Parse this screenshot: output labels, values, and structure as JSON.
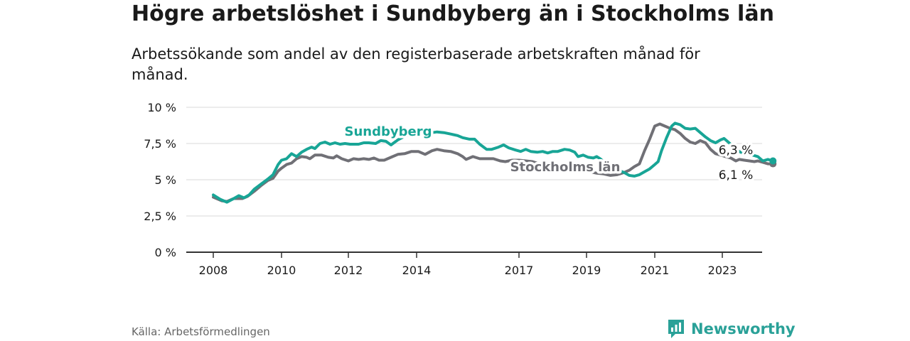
{
  "title": "Högre arbetslöshet i Sundbyberg än i Stockholms län",
  "subtitle": "Arbetssökande som andel av den registerbaserade arbetskraften månad för månad.",
  "source": "Källa: Arbetsförmedlingen",
  "brand": {
    "name": "Newsworthy",
    "icon": "newsworthy-logo-icon"
  },
  "colors": {
    "sundbyberg": "#18a596",
    "stockholm": "#707076",
    "grid": "#d8d8d8",
    "axis": "#333333"
  },
  "chart_data": {
    "type": "line",
    "title": "Högre arbetslöshet i Sundbyberg än i Stockholms län",
    "xlabel": "",
    "ylabel": "",
    "ylim": [
      0,
      10
    ],
    "xlim": [
      2008.0,
      2023.7
    ],
    "y_ticks": [
      {
        "value": 0,
        "label": "0 %"
      },
      {
        "value": 2.5,
        "label": "2,5 %"
      },
      {
        "value": 5,
        "label": "5 %"
      },
      {
        "value": 7.5,
        "label": "7,5 %"
      },
      {
        "value": 10,
        "label": "10 %"
      }
    ],
    "x_ticks": [
      {
        "value": 2008,
        "label": "2008"
      },
      {
        "value": 2010,
        "label": "2010"
      },
      {
        "value": 2012,
        "label": "2012"
      },
      {
        "value": 2014,
        "label": "2014"
      },
      {
        "value": 2017,
        "label": "2017"
      },
      {
        "value": 2019,
        "label": "2019"
      },
      {
        "value": 2021,
        "label": "2021"
      },
      {
        "value": 2023,
        "label": "2023"
      }
    ],
    "series": [
      {
        "name": "Stockholms län",
        "label": "Stockholms län",
        "end_label": "6,1 %",
        "points": [
          [
            2008.0,
            3.8
          ],
          [
            2008.25,
            3.55
          ],
          [
            2008.4,
            3.5
          ],
          [
            2008.6,
            3.7
          ],
          [
            2008.85,
            3.7
          ],
          [
            2009.0,
            3.85
          ],
          [
            2009.2,
            4.2
          ],
          [
            2009.4,
            4.6
          ],
          [
            2009.6,
            4.95
          ],
          [
            2009.75,
            5.1
          ],
          [
            2009.9,
            5.6
          ],
          [
            2010.0,
            5.8
          ],
          [
            2010.15,
            6.05
          ],
          [
            2010.3,
            6.15
          ],
          [
            2010.45,
            6.45
          ],
          [
            2010.6,
            6.6
          ],
          [
            2010.75,
            6.55
          ],
          [
            2010.85,
            6.45
          ],
          [
            2011.0,
            6.7
          ],
          [
            2011.2,
            6.7
          ],
          [
            2011.4,
            6.55
          ],
          [
            2011.55,
            6.5
          ],
          [
            2011.65,
            6.65
          ],
          [
            2011.8,
            6.45
          ],
          [
            2012.0,
            6.3
          ],
          [
            2012.15,
            6.45
          ],
          [
            2012.3,
            6.4
          ],
          [
            2012.45,
            6.45
          ],
          [
            2012.6,
            6.4
          ],
          [
            2012.75,
            6.5
          ],
          [
            2012.9,
            6.35
          ],
          [
            2013.05,
            6.35
          ],
          [
            2013.25,
            6.55
          ],
          [
            2013.45,
            6.75
          ],
          [
            2013.65,
            6.8
          ],
          [
            2013.85,
            6.95
          ],
          [
            2014.05,
            6.95
          ],
          [
            2014.25,
            6.75
          ],
          [
            2014.45,
            7.0
          ],
          [
            2014.6,
            7.1
          ],
          [
            2014.8,
            7.0
          ],
          [
            2015.0,
            6.95
          ],
          [
            2015.2,
            6.8
          ],
          [
            2015.35,
            6.6
          ],
          [
            2015.45,
            6.4
          ],
          [
            2015.65,
            6.6
          ],
          [
            2015.85,
            6.45
          ],
          [
            2016.05,
            6.45
          ],
          [
            2016.25,
            6.45
          ],
          [
            2016.45,
            6.3
          ],
          [
            2016.6,
            6.25
          ],
          [
            2016.8,
            6.35
          ],
          [
            2017.0,
            6.35
          ],
          [
            2017.2,
            6.3
          ],
          [
            2017.4,
            6.25
          ],
          [
            2017.6,
            6.1
          ],
          [
            2017.8,
            6.05
          ],
          [
            2018.0,
            6.0
          ],
          [
            2018.3,
            6.0
          ],
          [
            2018.6,
            5.85
          ],
          [
            2018.9,
            5.7
          ],
          [
            2019.1,
            5.55
          ],
          [
            2019.3,
            5.45
          ],
          [
            2019.5,
            5.4
          ],
          [
            2019.7,
            5.3
          ],
          [
            2019.9,
            5.35
          ],
          [
            2020.1,
            5.5
          ],
          [
            2020.25,
            5.65
          ],
          [
            2020.4,
            5.9
          ],
          [
            2020.55,
            6.1
          ],
          [
            2020.7,
            7.0
          ],
          [
            2020.85,
            7.8
          ],
          [
            2021.0,
            8.7
          ],
          [
            2021.15,
            8.85
          ],
          [
            2021.3,
            8.7
          ],
          [
            2021.45,
            8.55
          ],
          [
            2021.6,
            8.45
          ],
          [
            2021.75,
            8.2
          ],
          [
            2021.9,
            7.85
          ],
          [
            2022.05,
            7.6
          ],
          [
            2022.2,
            7.5
          ],
          [
            2022.35,
            7.7
          ],
          [
            2022.5,
            7.55
          ],
          [
            2022.65,
            7.1
          ],
          [
            2022.8,
            6.8
          ],
          [
            2022.95,
            6.7
          ],
          [
            2023.1,
            6.6
          ],
          [
            2023.25,
            6.5
          ],
          [
            2023.4,
            6.3
          ],
          [
            2023.5,
            6.4
          ],
          [
            2023.65,
            6.35
          ],
          [
            2023.8,
            6.3
          ],
          [
            2023.95,
            6.25
          ],
          [
            2024.05,
            6.3
          ],
          [
            2024.2,
            6.2
          ],
          [
            2024.35,
            6.1
          ],
          [
            2024.5,
            6.1
          ]
        ]
      },
      {
        "name": "Sundbyberg",
        "label": "Sundbyberg",
        "end_label": "6,3 %",
        "points": [
          [
            2008.0,
            3.95
          ],
          [
            2008.2,
            3.65
          ],
          [
            2008.4,
            3.45
          ],
          [
            2008.6,
            3.7
          ],
          [
            2008.75,
            3.9
          ],
          [
            2008.9,
            3.75
          ],
          [
            2009.05,
            3.95
          ],
          [
            2009.2,
            4.35
          ],
          [
            2009.4,
            4.7
          ],
          [
            2009.6,
            5.05
          ],
          [
            2009.75,
            5.35
          ],
          [
            2009.9,
            6.05
          ],
          [
            2010.0,
            6.35
          ],
          [
            2010.15,
            6.45
          ],
          [
            2010.3,
            6.8
          ],
          [
            2010.45,
            6.6
          ],
          [
            2010.6,
            6.9
          ],
          [
            2010.75,
            7.1
          ],
          [
            2010.9,
            7.25
          ],
          [
            2011.0,
            7.15
          ],
          [
            2011.15,
            7.5
          ],
          [
            2011.3,
            7.6
          ],
          [
            2011.45,
            7.45
          ],
          [
            2011.6,
            7.55
          ],
          [
            2011.75,
            7.45
          ],
          [
            2011.9,
            7.5
          ],
          [
            2012.05,
            7.45
          ],
          [
            2012.3,
            7.45
          ],
          [
            2012.45,
            7.55
          ],
          [
            2012.6,
            7.55
          ],
          [
            2012.8,
            7.5
          ],
          [
            2012.95,
            7.7
          ],
          [
            2013.1,
            7.65
          ],
          [
            2013.25,
            7.4
          ],
          [
            2013.45,
            7.75
          ],
          [
            2013.65,
            8.0
          ],
          [
            2013.85,
            8.1
          ],
          [
            2014.05,
            8.15
          ],
          [
            2014.25,
            8.05
          ],
          [
            2014.45,
            8.25
          ],
          [
            2014.6,
            8.3
          ],
          [
            2014.8,
            8.25
          ],
          [
            2015.0,
            8.15
          ],
          [
            2015.2,
            8.05
          ],
          [
            2015.35,
            7.9
          ],
          [
            2015.55,
            7.8
          ],
          [
            2015.7,
            7.8
          ],
          [
            2015.85,
            7.45
          ],
          [
            2016.05,
            7.1
          ],
          [
            2016.2,
            7.1
          ],
          [
            2016.4,
            7.25
          ],
          [
            2016.55,
            7.4
          ],
          [
            2016.7,
            7.2
          ],
          [
            2016.9,
            7.05
          ],
          [
            2017.05,
            6.95
          ],
          [
            2017.2,
            7.1
          ],
          [
            2017.35,
            6.95
          ],
          [
            2017.55,
            6.9
          ],
          [
            2017.7,
            6.95
          ],
          [
            2017.85,
            6.85
          ],
          [
            2018.0,
            6.95
          ],
          [
            2018.15,
            6.95
          ],
          [
            2018.35,
            7.1
          ],
          [
            2018.5,
            7.05
          ],
          [
            2018.65,
            6.9
          ],
          [
            2018.75,
            6.6
          ],
          [
            2018.9,
            6.7
          ],
          [
            2019.05,
            6.55
          ],
          [
            2019.2,
            6.5
          ],
          [
            2019.3,
            6.6
          ],
          [
            2019.4,
            6.45
          ],
          [
            2019.55,
            6.15
          ],
          [
            2019.7,
            5.85
          ],
          [
            2019.9,
            5.7
          ],
          [
            2020.1,
            5.5
          ],
          [
            2020.25,
            5.3
          ],
          [
            2020.4,
            5.25
          ],
          [
            2020.55,
            5.35
          ],
          [
            2020.7,
            5.55
          ],
          [
            2020.85,
            5.75
          ],
          [
            2021.0,
            6.05
          ],
          [
            2021.1,
            6.25
          ],
          [
            2021.2,
            7.0
          ],
          [
            2021.35,
            7.9
          ],
          [
            2021.5,
            8.7
          ],
          [
            2021.6,
            8.9
          ],
          [
            2021.75,
            8.8
          ],
          [
            2021.9,
            8.55
          ],
          [
            2022.05,
            8.5
          ],
          [
            2022.2,
            8.55
          ],
          [
            2022.35,
            8.25
          ],
          [
            2022.5,
            7.95
          ],
          [
            2022.65,
            7.7
          ],
          [
            2022.8,
            7.55
          ],
          [
            2022.95,
            7.75
          ],
          [
            2023.05,
            7.85
          ],
          [
            2023.15,
            7.65
          ],
          [
            2023.3,
            7.35
          ],
          [
            2023.45,
            7.0
          ],
          [
            2023.6,
            6.85
          ],
          [
            2023.75,
            6.85
          ],
          [
            2023.9,
            6.7
          ],
          [
            2024.05,
            6.6
          ],
          [
            2024.2,
            6.3
          ],
          [
            2024.35,
            6.4
          ],
          [
            2024.5,
            6.3
          ]
        ]
      }
    ]
  }
}
